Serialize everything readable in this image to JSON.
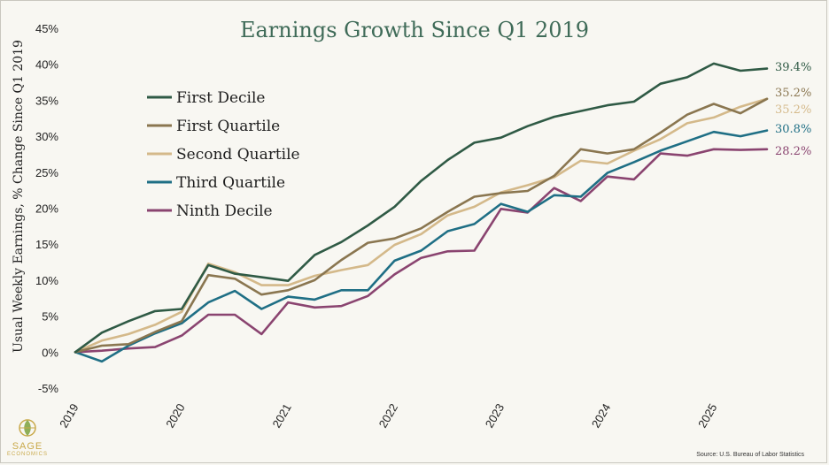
{
  "chart_data": {
    "type": "line",
    "title": "Earnings Growth Since Q1 2019",
    "ylabel": "Usual Weekly Earnings, % Change Since Q1 2019",
    "xlabel": "",
    "ylim": [
      -5,
      45
    ],
    "yticks": [
      "-5%",
      "0%",
      "5%",
      "10%",
      "15%",
      "20%",
      "25%",
      "30%",
      "35%",
      "40%",
      "45%"
    ],
    "ytick_values": [
      -5,
      0,
      5,
      10,
      15,
      20,
      25,
      30,
      35,
      40,
      45
    ],
    "xticks": [
      "2019",
      "2020",
      "2021",
      "2022",
      "2023",
      "2024",
      "2025"
    ],
    "xtick_index": [
      0,
      4,
      8,
      12,
      16,
      20,
      24
    ],
    "x": [
      "2019Q1",
      "2019Q2",
      "2019Q3",
      "2019Q4",
      "2020Q1",
      "2020Q2",
      "2020Q3",
      "2020Q4",
      "2021Q1",
      "2021Q2",
      "2021Q3",
      "2021Q4",
      "2022Q1",
      "2022Q2",
      "2022Q3",
      "2022Q4",
      "2023Q1",
      "2023Q2",
      "2023Q3",
      "2023Q4",
      "2024Q1",
      "2024Q2",
      "2024Q3",
      "2024Q4",
      "2025Q1",
      "2025Q2",
      "2025Q3"
    ],
    "legend_position": "upper-left",
    "series": [
      {
        "name": "First Decile",
        "color": "#2f5a45",
        "end_label": "39.4%",
        "values": [
          0,
          2.7,
          4.3,
          5.7,
          6.0,
          12.1,
          10.9,
          10.4,
          9.9,
          13.5,
          15.3,
          17.6,
          20.2,
          23.8,
          26.7,
          29.1,
          29.8,
          31.4,
          32.7,
          33.5,
          34.3,
          34.8,
          37.3,
          38.2,
          40.1,
          39.1,
          39.4
        ]
      },
      {
        "name": "First Quartile",
        "color": "#8a7650",
        "end_label": "35.2%",
        "values": [
          0,
          0.9,
          1.1,
          2.8,
          4.3,
          10.7,
          10.2,
          8.0,
          8.6,
          10.0,
          12.8,
          15.2,
          15.8,
          17.2,
          19.5,
          21.6,
          22.1,
          22.4,
          24.5,
          28.2,
          27.6,
          28.2,
          30.5,
          33.0,
          34.5,
          33.2,
          35.2
        ]
      },
      {
        "name": "Second Quartile",
        "color": "#d4b98a",
        "end_label": "35.2%",
        "values": [
          0,
          1.6,
          2.5,
          3.8,
          5.6,
          12.3,
          11.1,
          9.3,
          9.3,
          10.6,
          11.4,
          12.1,
          14.9,
          16.4,
          19.0,
          20.2,
          22.2,
          23.2,
          24.3,
          26.6,
          26.2,
          28.0,
          29.6,
          31.8,
          32.6,
          34.1,
          35.2
        ]
      },
      {
        "name": "Third Quartile",
        "color": "#1f6f85",
        "end_label": "30.8%",
        "values": [
          0,
          -1.3,
          0.9,
          2.6,
          4.0,
          6.9,
          8.5,
          6.0,
          7.7,
          7.3,
          8.6,
          8.6,
          12.7,
          14.1,
          16.8,
          17.8,
          20.6,
          19.5,
          21.8,
          21.6,
          24.9,
          26.4,
          28.0,
          29.3,
          30.6,
          30.0,
          30.8
        ]
      },
      {
        "name": "Ninth Decile",
        "color": "#8a4470",
        "end_label": "28.2%",
        "values": [
          0,
          0.2,
          0.5,
          0.7,
          2.3,
          5.2,
          5.2,
          2.5,
          6.9,
          6.2,
          6.4,
          7.8,
          10.8,
          13.1,
          14.0,
          14.1,
          19.9,
          19.4,
          22.8,
          21.0,
          24.4,
          24.0,
          27.6,
          27.3,
          28.2,
          28.1,
          28.2
        ]
      }
    ]
  },
  "branding": {
    "logo_text": "SAGE",
    "logo_subtext": "ECONOMICS"
  },
  "source": "Source: U.S. Bureau of Labor Statistics"
}
